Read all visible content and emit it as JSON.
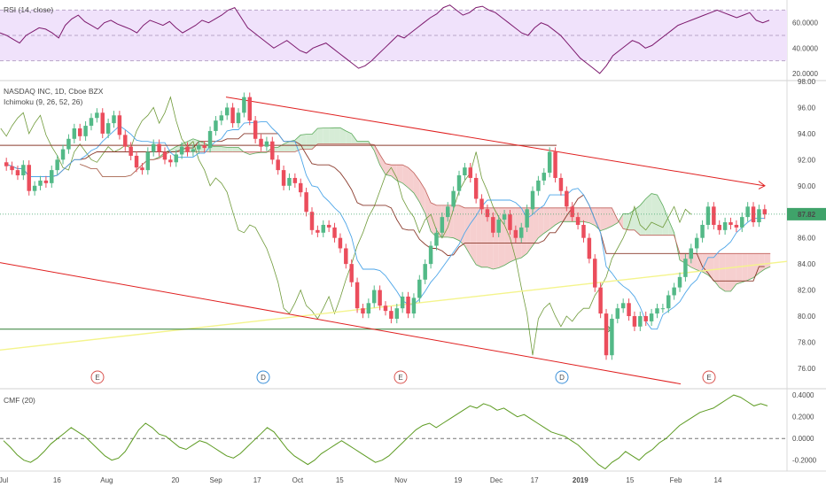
{
  "chart_data": {
    "type": "candlestick",
    "panes": {
      "rsi": {
        "label": "RSI (14, close)",
        "ylim": [
          15,
          78
        ],
        "ticks": [
          "60.0000",
          "40.0000",
          "20.0000"
        ],
        "tick_values": [
          60,
          40,
          20
        ],
        "band": [
          30,
          70
        ],
        "values": [
          52,
          50,
          47,
          44,
          50,
          53,
          56,
          55,
          52,
          48,
          58,
          63,
          66,
          61,
          58,
          55,
          60,
          62,
          59,
          57,
          55,
          52,
          58,
          62,
          60,
          58,
          61,
          56,
          52,
          55,
          58,
          62,
          60,
          63,
          66,
          70,
          72,
          64,
          56,
          52,
          48,
          44,
          40,
          43,
          46,
          42,
          38,
          36,
          40,
          42,
          44,
          40,
          36,
          32,
          28,
          24,
          26,
          30,
          35,
          40,
          45,
          50,
          48,
          52,
          56,
          60,
          64,
          67,
          72,
          74,
          70,
          66,
          68,
          72,
          73,
          70,
          68,
          64,
          60,
          56,
          52,
          50,
          56,
          60,
          58,
          54,
          50,
          44,
          38,
          32,
          28,
          24,
          20,
          26,
          34,
          38,
          42,
          46,
          44,
          40,
          42,
          46,
          50,
          54,
          58,
          60,
          62,
          64,
          66,
          68,
          70,
          68,
          66,
          64,
          66,
          68,
          62,
          60,
          62
        ]
      },
      "price": {
        "label": "NASDAQ INC, 1D, Cboe BZX",
        "indicator_label": "Ichimoku (9, 26, 52, 26)",
        "ylim": [
          74.5,
          98
        ],
        "ticks": [
          "98.00",
          "96.00",
          "94.00",
          "92.00",
          "90.00",
          "88.00",
          "86.00",
          "84.00",
          "82.00",
          "80.00",
          "78.00",
          "76.00"
        ],
        "tick_values": [
          98,
          96,
          94,
          92,
          90,
          88,
          86,
          84,
          82,
          80,
          78,
          76
        ],
        "last_price": "87.82",
        "last_price_value": 87.82,
        "closes": [
          91.5,
          91.2,
          90.8,
          91.6,
          89.6,
          90.0,
          90.4,
          90.2,
          91.2,
          92.0,
          92.8,
          93.6,
          94.4,
          93.8,
          94.6,
          95.2,
          95.6,
          94.0,
          94.8,
          95.4,
          93.9,
          93.0,
          92.3,
          91.4,
          91.2,
          92.6,
          93.2,
          92.6,
          92.0,
          91.8,
          92.4,
          93.0,
          92.6,
          92.8,
          93.1,
          92.9,
          94.2,
          95.0,
          95.4,
          96.0,
          94.8,
          95.6,
          96.8,
          95.0,
          93.6,
          93.0,
          93.4,
          92.0,
          91.2,
          90.0,
          90.6,
          90.2,
          89.5,
          88.0,
          86.6,
          86.4,
          87.0,
          86.8,
          86.0,
          85.2,
          84.0,
          82.6,
          80.6,
          80.2,
          81.0,
          82.0,
          80.8,
          80.4,
          79.8,
          80.6,
          81.5,
          80.2,
          81.4,
          82.8,
          84.0,
          85.4,
          86.4,
          87.6,
          88.4,
          89.6,
          90.8,
          91.4,
          90.6,
          89.0,
          88.2,
          87.6,
          86.4,
          87.4,
          87.8,
          86.6,
          86.0,
          86.8,
          88.2,
          89.6,
          90.4,
          91.0,
          92.6,
          90.6,
          89.6,
          88.4,
          87.6,
          87.0,
          86.0,
          84.4,
          82.2,
          80.2,
          77.0,
          79.8,
          80.6,
          81.0,
          80.0,
          79.2,
          80.0,
          79.6,
          80.2,
          80.6,
          80.6,
          81.6,
          82.2,
          83.0,
          84.4,
          85.2,
          86.0,
          87.0,
          88.4,
          87.0,
          86.6,
          87.2,
          87.0,
          86.8,
          87.6,
          88.4,
          87.2,
          88.2,
          87.8
        ],
        "ichimoku_note": "conversion, base, span A/B cloud and lagging line derived from closes",
        "trendlines": [
          "upper channel 96.8 → 90.0",
          "lower channel 84.1 → 74.8",
          "support 77.4 → 84.2",
          "horizontal 93.1",
          "horizontal 79.0"
        ],
        "event_markers": [
          "E",
          "D",
          "E",
          "D",
          "E"
        ]
      },
      "cmf": {
        "label": "CMF (20)",
        "ylim": [
          -0.3,
          0.45
        ],
        "ticks": [
          "0.4000",
          "0.2000",
          "0.0000",
          "-0.2000"
        ],
        "tick_values": [
          0.4,
          0.2,
          0,
          -0.2
        ],
        "values": [
          -0.02,
          -0.08,
          -0.15,
          -0.2,
          -0.22,
          -0.18,
          -0.12,
          -0.05,
          0.0,
          0.05,
          0.1,
          0.06,
          0.02,
          -0.04,
          -0.1,
          -0.16,
          -0.2,
          -0.18,
          -0.12,
          -0.02,
          0.08,
          0.14,
          0.1,
          0.04,
          0.02,
          -0.03,
          -0.08,
          -0.1,
          -0.06,
          -0.02,
          -0.04,
          -0.08,
          -0.12,
          -0.16,
          -0.18,
          -0.14,
          -0.08,
          -0.02,
          0.04,
          0.1,
          0.06,
          -0.02,
          -0.1,
          -0.16,
          -0.2,
          -0.24,
          -0.2,
          -0.14,
          -0.1,
          -0.06,
          -0.02,
          -0.06,
          -0.1,
          -0.14,
          -0.18,
          -0.22,
          -0.2,
          -0.16,
          -0.1,
          -0.04,
          0.02,
          0.08,
          0.12,
          0.14,
          0.1,
          0.14,
          0.18,
          0.22,
          0.26,
          0.3,
          0.28,
          0.32,
          0.3,
          0.26,
          0.28,
          0.24,
          0.2,
          0.22,
          0.18,
          0.14,
          0.1,
          0.06,
          0.04,
          0.02,
          -0.02,
          -0.06,
          -0.12,
          -0.18,
          -0.24,
          -0.28,
          -0.22,
          -0.18,
          -0.12,
          -0.16,
          -0.2,
          -0.14,
          -0.1,
          -0.04,
          0.0,
          0.06,
          0.12,
          0.16,
          0.2,
          0.24,
          0.26,
          0.28,
          0.32,
          0.36,
          0.4,
          0.38,
          0.34,
          0.3,
          0.32,
          0.3
        ]
      }
    },
    "x_ticks": [
      {
        "label": "Jul",
        "pos": 0.0
      },
      {
        "label": "16",
        "pos": 0.07
      },
      {
        "label": "Aug",
        "pos": 0.135
      },
      {
        "label": "20",
        "pos": 0.225
      },
      {
        "label": "Sep",
        "pos": 0.278
      },
      {
        "label": "17",
        "pos": 0.332
      },
      {
        "label": "Oct",
        "pos": 0.385
      },
      {
        "label": "15",
        "pos": 0.44
      },
      {
        "label": "Nov",
        "pos": 0.52
      },
      {
        "label": "19",
        "pos": 0.595
      },
      {
        "label": "Dec",
        "pos": 0.645
      },
      {
        "label": "17",
        "pos": 0.695
      },
      {
        "label": "2019",
        "pos": 0.755
      },
      {
        "label": "15",
        "pos": 0.82
      },
      {
        "label": "Feb",
        "pos": 0.88
      },
      {
        "label": "14",
        "pos": 0.935
      }
    ],
    "colors": {
      "up": "#53b987",
      "down": "#eb4d5c",
      "rsi_line": "#7d1a6e",
      "rsi_band": "#f0e2fb",
      "cmf_line": "#5d9b22",
      "channel": "#e02020",
      "support": "#f4f48c",
      "horizontal": "#2e7d32",
      "conversion": "#4ea6e8",
      "base": "#8a3a2c",
      "lagging": "#6f9a3a",
      "span_a": "#5aaa5a",
      "span_b": "#c0605a",
      "cloud_up": "#d6ecd6",
      "cloud_down": "#f6cfcf",
      "last_price_bg": "#3fa36a"
    }
  }
}
